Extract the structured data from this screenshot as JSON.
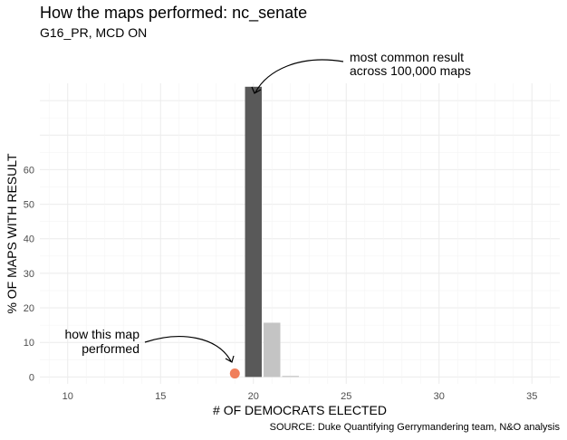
{
  "chart_data": {
    "type": "bar",
    "title": "How the maps performed: nc_senate",
    "subtitle": "G16_PR, MCD ON",
    "xlabel": "# OF DEMOCRATS ELECTED",
    "ylabel": "% OF MAPS WITH RESULT",
    "caption": "SOURCE: Duke Quantifying Gerrymandering team, N&O analysis",
    "xlim": [
      8.5,
      36.5
    ],
    "ylim": [
      -2,
      85
    ],
    "x_ticks": [
      10,
      15,
      20,
      25,
      30,
      35
    ],
    "y_ticks": [
      0,
      10,
      20,
      30,
      40,
      50,
      60
    ],
    "grid": true,
    "bars": [
      {
        "x": 20,
        "value": 84.0,
        "color": "#595959"
      },
      {
        "x": 21,
        "value": 15.7,
        "color": "#c4c4c4"
      },
      {
        "x": 22,
        "value": 0.3,
        "color": "#c4c4c4"
      }
    ],
    "this_map": {
      "x": 19,
      "value": 1.0,
      "color": "#f07f5b"
    },
    "annotations": {
      "most_common": [
        "most common result",
        "across 100,000 maps"
      ],
      "this_map": [
        "how this map",
        "performed"
      ]
    }
  }
}
